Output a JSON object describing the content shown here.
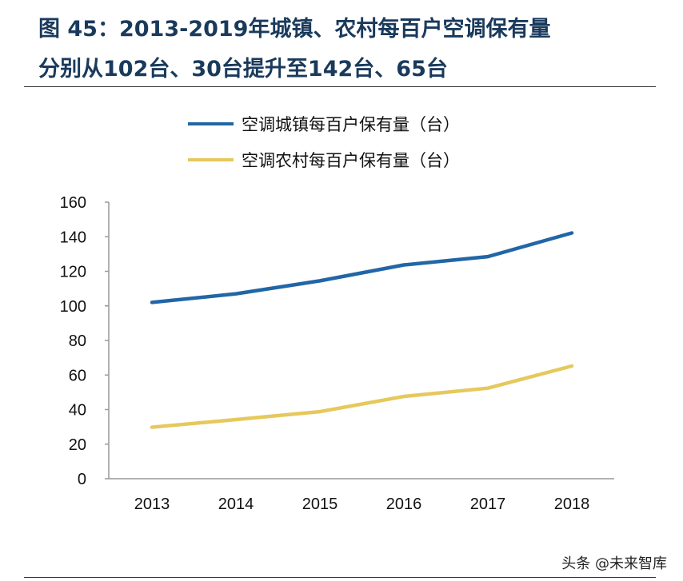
{
  "title_line1": "图 45：2013-2019年城镇、农村每百户空调保有量",
  "title_line2": "分别从102台、30台提升至142台、65台",
  "watermark": "头条 @未来智库",
  "chart_data": {
    "type": "line",
    "categories": [
      "2013",
      "2014",
      "2015",
      "2016",
      "2017",
      "2018"
    ],
    "series": [
      {
        "name": "空调城镇每百户保有量（台）",
        "color": "#2166a6",
        "values": [
          102,
          107,
          114.5,
          123.7,
          128.5,
          142.2
        ]
      },
      {
        "name": "空调农村每百户保有量（台）",
        "color": "#e6c85c",
        "values": [
          29.8,
          34.2,
          38.8,
          47.6,
          52.4,
          65.2
        ]
      }
    ],
    "ylim": [
      0,
      160
    ],
    "yticks": [
      0,
      20,
      40,
      60,
      80,
      100,
      120,
      140,
      160
    ],
    "grid": false,
    "legend": "top"
  }
}
